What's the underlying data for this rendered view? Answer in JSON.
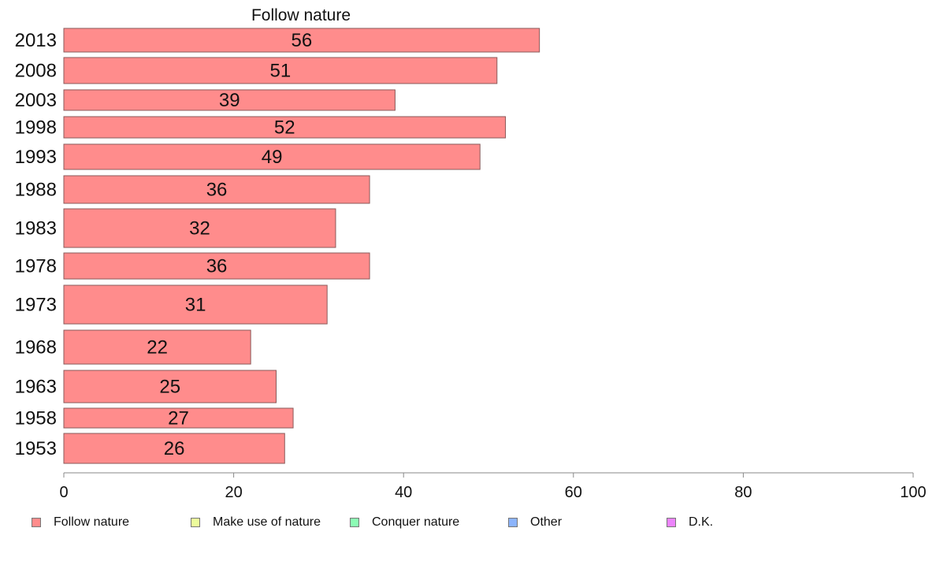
{
  "chart_data": {
    "type": "bar",
    "orientation": "horizontal",
    "title": "Follow nature",
    "categories": [
      "2013",
      "2008",
      "2003",
      "1998",
      "1993",
      "1988",
      "1983",
      "1978",
      "1973",
      "1968",
      "1963",
      "1958",
      "1953"
    ],
    "series": [
      {
        "name": "Follow nature",
        "values": [
          56,
          51,
          39,
          52,
          49,
          36,
          32,
          36,
          31,
          22,
          25,
          27,
          26
        ],
        "color": "#ff8c8c"
      }
    ],
    "data_labels": [
      "56",
      "51",
      "39",
      "52",
      "49",
      "36",
      "32",
      "36",
      "31",
      "22",
      "25",
      "27",
      "26"
    ],
    "xlim": [
      0,
      100
    ],
    "xticks": [
      0,
      20,
      40,
      60,
      80,
      100
    ],
    "grid": false,
    "legend": {
      "position": "bottom",
      "entries": [
        {
          "label": "Follow nature",
          "color": "#ff8c8c"
        },
        {
          "label": "Make use of nature",
          "color": "#ecfc9c"
        },
        {
          "label": "Conquer nature",
          "color": "#8cfcb4"
        },
        {
          "label": "Other",
          "color": "#8cb4fc"
        },
        {
          "label": "D.K.",
          "color": "#ec84fc"
        }
      ]
    }
  }
}
